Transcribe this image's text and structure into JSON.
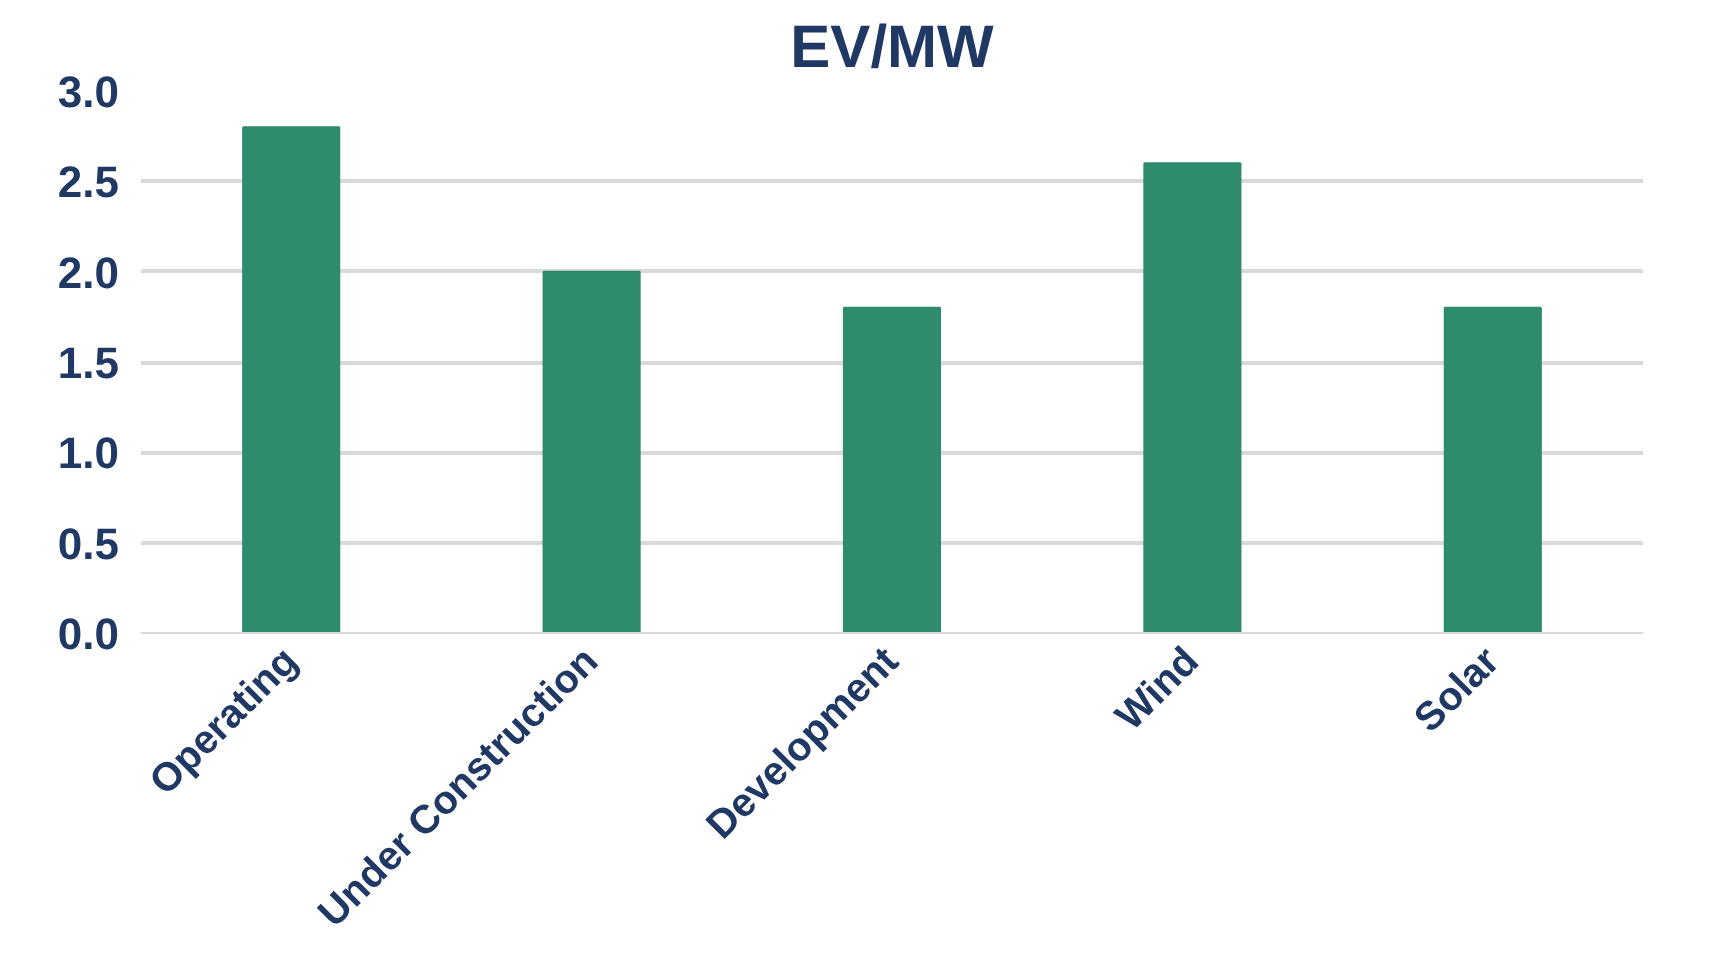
{
  "chart_data": {
    "type": "bar",
    "title": "EV/MW",
    "categories": [
      "Operating",
      "Under Construction",
      "Development",
      "Wind",
      "Solar"
    ],
    "values": [
      2.8,
      2.0,
      1.8,
      2.6,
      1.8
    ],
    "color": "#2e8b6e",
    "ylim": [
      0,
      3
    ],
    "yticks": [
      {
        "value": 0,
        "label": "0.0"
      },
      {
        "value": 0.5,
        "label": "0.5"
      },
      {
        "value": 1,
        "label": "1.0"
      },
      {
        "value": 1.5,
        "label": "1.5"
      },
      {
        "value": 2,
        "label": "2.0"
      },
      {
        "value": 2.5,
        "label": "2.5"
      },
      {
        "value": 3,
        "label": "3.0"
      }
    ],
    "grid": "y"
  }
}
